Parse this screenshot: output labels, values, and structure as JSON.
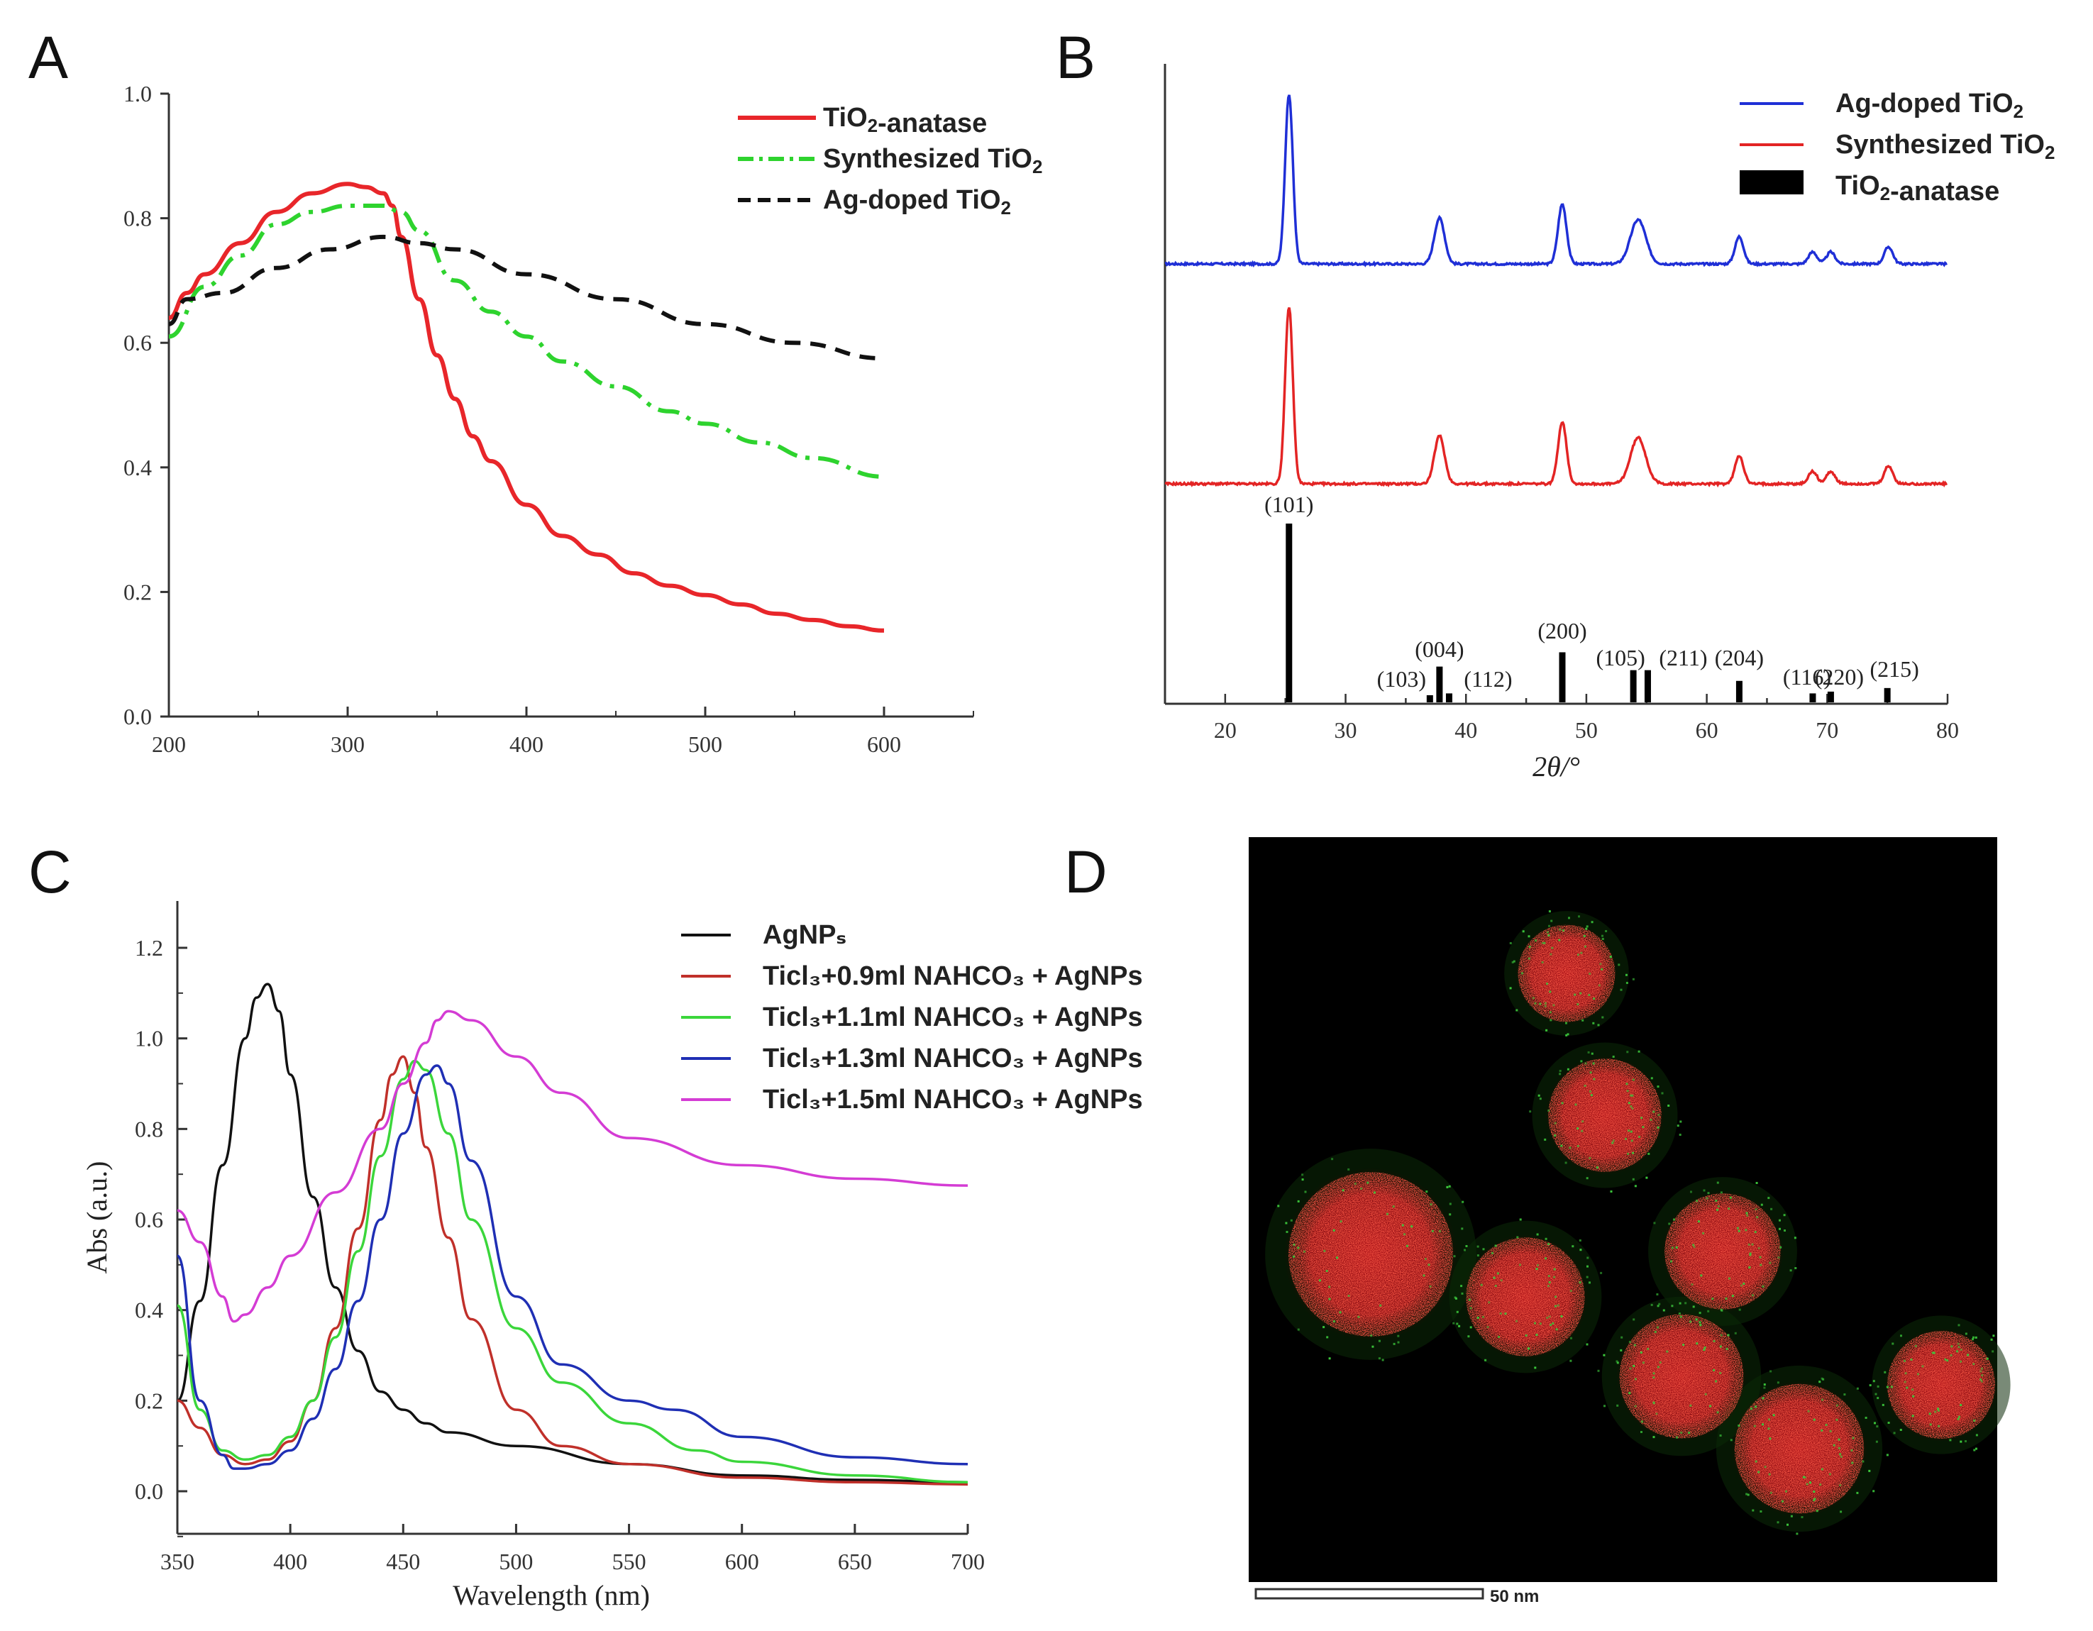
{
  "figure": {
    "panels": {
      "A": "A",
      "B": "B",
      "C": "C",
      "D": "D"
    },
    "scale_bar": "50 nm"
  },
  "chart_data": [
    {
      "id": "A",
      "type": "line",
      "xlabel": "",
      "ylabel": "",
      "xlim": [
        200,
        650
      ],
      "ylim": [
        0.0,
        1.0
      ],
      "xticks": [
        200,
        300,
        400,
        500,
        600
      ],
      "yticks": [
        "0.0",
        "0.2",
        "0.4",
        "0.6",
        "0.8",
        "1.0"
      ],
      "legend_position": "top-right",
      "series": [
        {
          "name": "TiO2-anatase",
          "color": "#e8262a",
          "style": "solid",
          "x": [
            200,
            210,
            220,
            240,
            260,
            280,
            300,
            310,
            320,
            325,
            330,
            340,
            350,
            360,
            370,
            380,
            400,
            420,
            440,
            460,
            480,
            500,
            520,
            540,
            560,
            580,
            600
          ],
          "y": [
            0.64,
            0.68,
            0.71,
            0.76,
            0.81,
            0.84,
            0.855,
            0.85,
            0.84,
            0.82,
            0.77,
            0.67,
            0.58,
            0.51,
            0.45,
            0.41,
            0.34,
            0.29,
            0.26,
            0.23,
            0.21,
            0.195,
            0.18,
            0.165,
            0.155,
            0.145,
            0.138
          ]
        },
        {
          "name": "Synthesized TiO2",
          "color": "#2ed32e",
          "style": "dashdot",
          "x": [
            200,
            220,
            240,
            260,
            280,
            300,
            320,
            330,
            340,
            360,
            380,
            400,
            420,
            450,
            480,
            500,
            530,
            560,
            600
          ],
          "y": [
            0.61,
            0.69,
            0.74,
            0.79,
            0.81,
            0.82,
            0.82,
            0.81,
            0.78,
            0.7,
            0.65,
            0.61,
            0.57,
            0.53,
            0.49,
            0.47,
            0.44,
            0.415,
            0.385
          ]
        },
        {
          "name": "Ag-doped TiO2",
          "color": "#111111",
          "style": "dashed",
          "x": [
            200,
            210,
            230,
            260,
            290,
            320,
            340,
            360,
            400,
            450,
            500,
            550,
            600
          ],
          "y": [
            0.63,
            0.67,
            0.68,
            0.72,
            0.75,
            0.77,
            0.76,
            0.75,
            0.71,
            0.67,
            0.63,
            0.6,
            0.575
          ]
        }
      ]
    },
    {
      "id": "B",
      "type": "line",
      "xlabel": "2θ/°",
      "xlim": [
        15,
        80
      ],
      "xticks": [
        20,
        30,
        40,
        50,
        60,
        70,
        80
      ],
      "legend_position": "top-right",
      "series": [
        {
          "name": "Ag-doped TiO2",
          "color": "#1f2fd6",
          "role": "xrd-pattern"
        },
        {
          "name": "Synthesized TiO2",
          "color": "#e32424",
          "role": "xrd-pattern"
        },
        {
          "name": "TiO2-anatase",
          "color": "#000000",
          "role": "reference-sticks"
        }
      ],
      "peaks": [
        {
          "two_theta": 25.3,
          "intensity": 1.0,
          "width": 0.45,
          "hkl": "(101)"
        },
        {
          "two_theta": 37.8,
          "intensity": 0.27,
          "width": 0.6,
          "hkl": "(004)"
        },
        {
          "two_theta": 48.0,
          "intensity": 0.35,
          "width": 0.5,
          "hkl": "(200)"
        },
        {
          "two_theta": 54.3,
          "intensity": 0.26,
          "width": 0.9,
          "hkl": "(105)"
        },
        {
          "two_theta": 62.7,
          "intensity": 0.16,
          "width": 0.5,
          "hkl": "(204)"
        },
        {
          "two_theta": 68.8,
          "intensity": 0.07,
          "width": 0.5,
          "hkl": "(116)"
        },
        {
          "two_theta": 70.3,
          "intensity": 0.07,
          "width": 0.5,
          "hkl": "(220)"
        },
        {
          "two_theta": 75.1,
          "intensity": 0.1,
          "width": 0.5,
          "hkl": "(215)"
        }
      ],
      "reference_sticks": [
        {
          "two_theta": 25.3,
          "intensity": 100,
          "label": "(101)"
        },
        {
          "two_theta": 37.0,
          "intensity": 4,
          "label": "(103)"
        },
        {
          "two_theta": 37.8,
          "intensity": 20,
          "label": "(004)"
        },
        {
          "two_theta": 38.6,
          "intensity": 5,
          "label": "(112)"
        },
        {
          "two_theta": 48.0,
          "intensity": 28,
          "label": "(200)"
        },
        {
          "two_theta": 53.9,
          "intensity": 18,
          "label": "(105)"
        },
        {
          "two_theta": 55.1,
          "intensity": 18,
          "label": "(211)"
        },
        {
          "two_theta": 62.7,
          "intensity": 12,
          "label": "(204)"
        },
        {
          "two_theta": 68.8,
          "intensity": 5,
          "label": "(116)"
        },
        {
          "two_theta": 70.3,
          "intensity": 6,
          "label": "(220)"
        },
        {
          "two_theta": 75.0,
          "intensity": 8,
          "label": "(215)"
        }
      ]
    },
    {
      "id": "C",
      "type": "line",
      "xlabel": "Wavelength (nm)",
      "ylabel": "Abs (a.u.)",
      "xlim": [
        350,
        700
      ],
      "ylim": [
        -0.1,
        1.3
      ],
      "xticks": [
        350,
        400,
        450,
        500,
        550,
        600,
        650,
        700
      ],
      "yticks": [
        "0.0",
        "0.2",
        "0.4",
        "0.6",
        "0.8",
        "1.0",
        "1.2"
      ],
      "legend_position": "top-right",
      "series": [
        {
          "name": "AgNPₛ",
          "color": "#111111",
          "x": [
            350,
            360,
            370,
            380,
            385,
            390,
            395,
            400,
            410,
            420,
            430,
            440,
            450,
            460,
            470,
            500,
            550,
            600,
            650,
            700
          ],
          "y": [
            0.2,
            0.42,
            0.72,
            1.0,
            1.09,
            1.12,
            1.06,
            0.92,
            0.65,
            0.45,
            0.31,
            0.22,
            0.18,
            0.15,
            0.13,
            0.1,
            0.06,
            0.035,
            0.025,
            0.02
          ]
        },
        {
          "name": "Ticl₃+0.9ml NAHCO₃ + AgNPs",
          "color": "#c0302a",
          "x": [
            350,
            360,
            370,
            380,
            390,
            400,
            410,
            420,
            430,
            440,
            445,
            450,
            455,
            460,
            470,
            480,
            500,
            520,
            550,
            600,
            650,
            700
          ],
          "y": [
            0.2,
            0.14,
            0.08,
            0.06,
            0.07,
            0.11,
            0.2,
            0.36,
            0.58,
            0.82,
            0.92,
            0.96,
            0.88,
            0.76,
            0.56,
            0.38,
            0.18,
            0.1,
            0.06,
            0.03,
            0.02,
            0.015
          ]
        },
        {
          "name": "Ticl₃+1.1ml NAHCO₃ + AgNPs",
          "color": "#3bd63b",
          "x": [
            350,
            360,
            370,
            380,
            390,
            400,
            410,
            420,
            430,
            440,
            450,
            455,
            460,
            470,
            480,
            500,
            520,
            550,
            580,
            600,
            650,
            700
          ],
          "y": [
            0.41,
            0.18,
            0.09,
            0.07,
            0.08,
            0.12,
            0.2,
            0.34,
            0.53,
            0.74,
            0.91,
            0.95,
            0.93,
            0.79,
            0.6,
            0.36,
            0.24,
            0.15,
            0.09,
            0.065,
            0.035,
            0.02
          ]
        },
        {
          "name": "Ticl₃+1.3ml NAHCO₃ + AgNPs",
          "color": "#1f2fb4",
          "x": [
            350,
            360,
            370,
            375,
            380,
            390,
            400,
            410,
            420,
            430,
            440,
            450,
            460,
            465,
            470,
            480,
            500,
            520,
            550,
            570,
            600,
            650,
            700
          ],
          "y": [
            0.52,
            0.2,
            0.08,
            0.05,
            0.05,
            0.06,
            0.09,
            0.16,
            0.27,
            0.42,
            0.6,
            0.79,
            0.92,
            0.94,
            0.9,
            0.73,
            0.43,
            0.28,
            0.2,
            0.18,
            0.12,
            0.075,
            0.06
          ]
        },
        {
          "name": "Ticl₃+1.5ml NAHCO₃ + AgNPs",
          "color": "#d43cd4",
          "x": [
            350,
            360,
            370,
            375,
            380,
            390,
            400,
            420,
            440,
            450,
            460,
            465,
            470,
            480,
            500,
            520,
            550,
            600,
            650,
            700
          ],
          "y": [
            0.62,
            0.55,
            0.43,
            0.375,
            0.39,
            0.45,
            0.52,
            0.66,
            0.8,
            0.9,
            0.99,
            1.04,
            1.06,
            1.04,
            0.96,
            0.88,
            0.78,
            0.72,
            0.69,
            0.675
          ]
        }
      ]
    }
  ]
}
